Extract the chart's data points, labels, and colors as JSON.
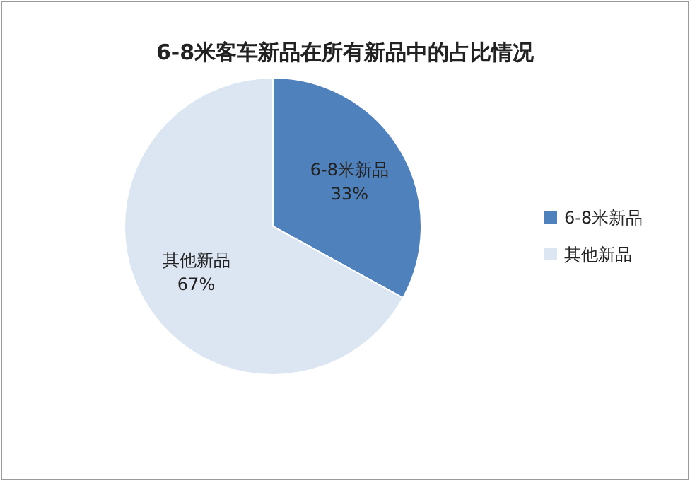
{
  "chart_data": {
    "type": "pie",
    "title": "6-8米客车新品在所有新品中的占比情况",
    "categories": [
      "6-8米新品",
      "其他新品"
    ],
    "values": [
      33,
      67
    ],
    "colors": [
      "#4f81bd",
      "#dce6f2"
    ],
    "value_labels": [
      "33%",
      "67%"
    ],
    "legend": "right"
  }
}
